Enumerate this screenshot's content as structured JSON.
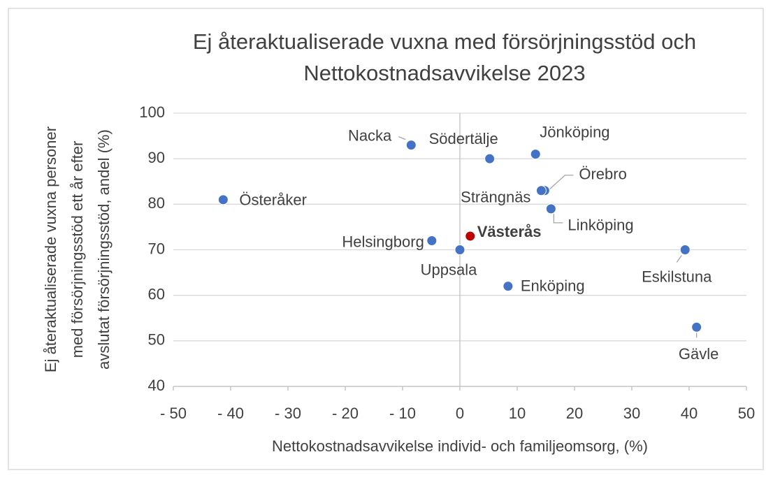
{
  "chart_data": {
    "type": "scatter",
    "title": [
      "Ej återaktualiserade vuxna med försörjningsstöd och",
      "Nettokostnadsavvikelse 2023"
    ],
    "x_label": "Nettokostnadsavvikelse individ- och familjeomsorg, (%)",
    "y_label": [
      "Ej återaktualiserade vuxna personer",
      "med försörjningsstöd ett år efter",
      "avslutat försörjningsstöd, andel (%)"
    ],
    "points": {
      "names": [
        "Österåker",
        "Nacka",
        "Södertälje",
        "Jönköping",
        "Örebro",
        "Strängnäs",
        "Linköping",
        "Västerås",
        "Helsingborg",
        "Uppsala",
        "Enköping",
        "Eskilstuna",
        "Gävle"
      ],
      "x": [
        -41.3,
        -8.5,
        5.2,
        13.2,
        14.8,
        14.2,
        15.9,
        1.8,
        -4.9,
        0,
        8.4,
        39.3,
        41.3
      ],
      "y": [
        81,
        93,
        90,
        91,
        83,
        83,
        79,
        73,
        72,
        70,
        62,
        70,
        53
      ],
      "colors": [
        "#4472c4",
        "#4472c4",
        "#4472c4",
        "#4472c4",
        "#4472c4",
        "#4472c4",
        "#4472c4",
        "#c00000",
        "#4472c4",
        "#4472c4",
        "#4472c4",
        "#4472c4",
        "#4472c4"
      ]
    },
    "xlim": [
      -50,
      50
    ],
    "xticks": [
      {
        "value": -50,
        "label": "- 50"
      },
      {
        "value": -40,
        "label": "- 40"
      },
      {
        "value": -30,
        "label": "- 30"
      },
      {
        "value": -20,
        "label": "- 20"
      },
      {
        "value": -10,
        "label": "- 10"
      },
      0,
      10,
      20,
      30,
      40,
      50
    ],
    "ylim": [
      40,
      100
    ],
    "yticks": [
      40,
      50,
      60,
      70,
      80,
      90,
      100
    ],
    "grid": true
  }
}
